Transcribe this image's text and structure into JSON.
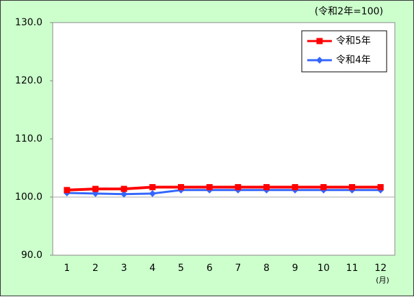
{
  "chart_data": {
    "type": "line",
    "unit_note": "(令和2年=100)",
    "x_unit": "(月)",
    "categories": [
      "1",
      "2",
      "3",
      "4",
      "5",
      "6",
      "7",
      "8",
      "9",
      "10",
      "11",
      "12"
    ],
    "series": [
      {
        "name": "令和5年",
        "color": "#ff0000",
        "marker": "square",
        "values": [
          101.2,
          101.4,
          101.4,
          101.7,
          101.7,
          101.7,
          101.7,
          101.7,
          101.7,
          101.7,
          101.7,
          101.7
        ]
      },
      {
        "name": "令和4年",
        "color": "#3366ff",
        "marker": "diamond",
        "values": [
          100.7,
          100.6,
          100.5,
          100.6,
          101.2,
          101.2,
          101.2,
          101.2,
          101.2,
          101.2,
          101.2,
          101.2
        ]
      }
    ],
    "ylim": [
      90,
      130
    ],
    "yticks": [
      {
        "value": 90,
        "label": "90.0"
      },
      {
        "value": 100,
        "label": "100.0"
      },
      {
        "value": 110,
        "label": "110.0"
      },
      {
        "value": 120,
        "label": "120.0"
      },
      {
        "value": 130,
        "label": "130.0"
      }
    ],
    "reference_line": 100,
    "legend": "top-right"
  }
}
